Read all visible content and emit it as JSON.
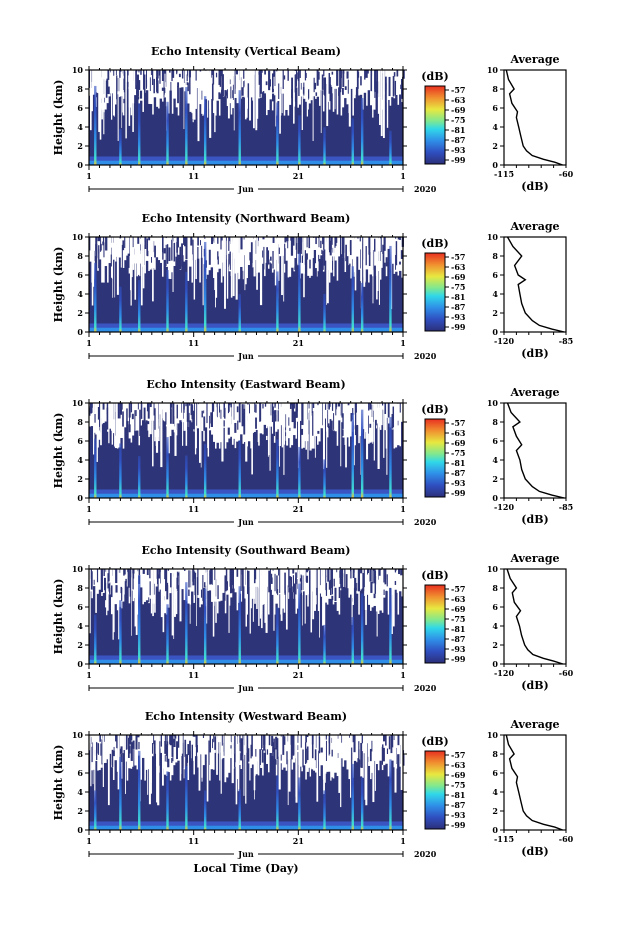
{
  "chart_data": [
    {
      "type": "heatmap",
      "title": "Echo Intensity (Vertical Beam)",
      "ylabel": "Height (km)",
      "ylim": [
        0,
        10
      ],
      "y_ticks": [
        "0",
        "2",
        "4",
        "6",
        "8",
        "10"
      ],
      "x_tick_labels": [
        "1",
        "11",
        "21",
        "1"
      ],
      "month_label": "Jun",
      "year_label": "2020",
      "colorbar": {
        "label": "(dB)",
        "ticks": [
          "-57",
          "-63",
          "-69",
          "-75",
          "-81",
          "-87",
          "-93",
          "-99"
        ]
      },
      "average_profile": {
        "title": "Average",
        "xlabel": "(dB)",
        "x_tick_labels": [
          "-115",
          "-60"
        ],
        "xlim": [
          -115,
          -60
        ],
        "height_km": [
          0,
          0.3,
          0.6,
          1.0,
          1.5,
          2.0,
          3.0,
          4.0,
          5.0,
          5.6,
          6.5,
          7.5,
          8.0,
          9.0,
          10.0
        ],
        "db": [
          -63,
          -70,
          -80,
          -90,
          -95,
          -98,
          -100,
          -102,
          -104,
          -103,
          -108,
          -110,
          -106,
          -111,
          -113
        ]
      }
    },
    {
      "type": "heatmap",
      "title": "Echo Intensity (Northward Beam)",
      "ylabel": "Height (km)",
      "ylim": [
        0,
        10
      ],
      "y_ticks": [
        "0",
        "2",
        "4",
        "6",
        "8",
        "10"
      ],
      "x_tick_labels": [
        "1",
        "11",
        "21",
        "1"
      ],
      "month_label": "Jun",
      "year_label": "2020",
      "colorbar": {
        "label": "(dB)",
        "ticks": [
          "-57",
          "-63",
          "-69",
          "-75",
          "-81",
          "-87",
          "-93",
          "-99"
        ]
      },
      "average_profile": {
        "title": "Average",
        "xlabel": "(dB)",
        "x_tick_labels": [
          "-120",
          "-85"
        ],
        "xlim": [
          -120,
          -85
        ],
        "height_km": [
          0,
          0.3,
          0.7,
          1.2,
          2.0,
          3.0,
          4.0,
          5.0,
          5.5,
          6.0,
          7.0,
          8.0,
          9.0,
          10.0
        ],
        "db": [
          -86,
          -93,
          -100,
          -104,
          -108,
          -110,
          -111,
          -112,
          -108,
          -112,
          -114,
          -110,
          -115,
          -118
        ]
      }
    },
    {
      "type": "heatmap",
      "title": "Echo Intensity (Eastward Beam)",
      "ylabel": "Height (km)",
      "ylim": [
        0,
        10
      ],
      "y_ticks": [
        "0",
        "2",
        "4",
        "6",
        "8",
        "10"
      ],
      "x_tick_labels": [
        "1",
        "11",
        "21",
        "1"
      ],
      "month_label": "Jun",
      "year_label": "2020",
      "colorbar": {
        "label": "(dB)",
        "ticks": [
          "-57",
          "-63",
          "-69",
          "-75",
          "-81",
          "-87",
          "-93",
          "-99"
        ]
      },
      "average_profile": {
        "title": "Average",
        "xlabel": "(dB)",
        "x_tick_labels": [
          "-120",
          "-85"
        ],
        "xlim": [
          -120,
          -85
        ],
        "height_km": [
          0,
          0.3,
          0.7,
          1.2,
          2.0,
          3.0,
          4.0,
          5.0,
          5.6,
          6.5,
          7.5,
          8.0,
          9.0,
          10.0
        ],
        "db": [
          -86,
          -93,
          -100,
          -104,
          -108,
          -110,
          -111,
          -113,
          -110,
          -113,
          -115,
          -111,
          -116,
          -118
        ]
      }
    },
    {
      "type": "heatmap",
      "title": "Echo Intensity (Southward Beam)",
      "ylabel": "Height (km)",
      "ylim": [
        0,
        10
      ],
      "y_ticks": [
        "0",
        "2",
        "4",
        "6",
        "8",
        "10"
      ],
      "x_tick_labels": [
        "1",
        "11",
        "21",
        "1"
      ],
      "month_label": "Jun",
      "year_label": "2020",
      "colorbar": {
        "label": "(dB)",
        "ticks": [
          "-57",
          "-63",
          "-69",
          "-75",
          "-81",
          "-87",
          "-93",
          "-99"
        ]
      },
      "average_profile": {
        "title": "Average",
        "xlabel": "(dB)",
        "x_tick_labels": [
          "-120",
          "-60"
        ],
        "xlim": [
          -120,
          -60
        ],
        "height_km": [
          0,
          0.3,
          0.6,
          1.0,
          1.5,
          2.0,
          3.0,
          4.0,
          5.0,
          5.6,
          6.5,
          7.5,
          8.0,
          9.0,
          10.0
        ],
        "db": [
          -63,
          -72,
          -82,
          -92,
          -97,
          -100,
          -103,
          -105,
          -108,
          -104,
          -110,
          -112,
          -108,
          -114,
          -117
        ]
      }
    },
    {
      "type": "heatmap",
      "title": "Echo Intensity (Westward Beam)",
      "ylabel": "Height (km)",
      "ylim": [
        0,
        10
      ],
      "y_ticks": [
        "0",
        "2",
        "4",
        "6",
        "8",
        "10"
      ],
      "x_tick_labels": [
        "1",
        "11",
        "21",
        "1"
      ],
      "month_label": "Jun",
      "year_label": "2020",
      "xlabel": "Local Time (Day)",
      "colorbar": {
        "label": "(dB)",
        "ticks": [
          "-57",
          "-63",
          "-69",
          "-75",
          "-81",
          "-87",
          "-93",
          "-99"
        ]
      },
      "average_profile": {
        "title": "Average",
        "xlabel": "(dB)",
        "x_tick_labels": [
          "-115",
          "-60"
        ],
        "xlim": [
          -115,
          -60
        ],
        "height_km": [
          0,
          0.3,
          0.6,
          1.0,
          1.5,
          2.0,
          3.0,
          4.0,
          5.0,
          5.6,
          6.5,
          7.5,
          8.0,
          9.0,
          10.0
        ],
        "db": [
          -63,
          -70,
          -80,
          -90,
          -95,
          -98,
          -100,
          -102,
          -104,
          -103,
          -108,
          -110,
          -106,
          -111,
          -113
        ]
      }
    }
  ]
}
